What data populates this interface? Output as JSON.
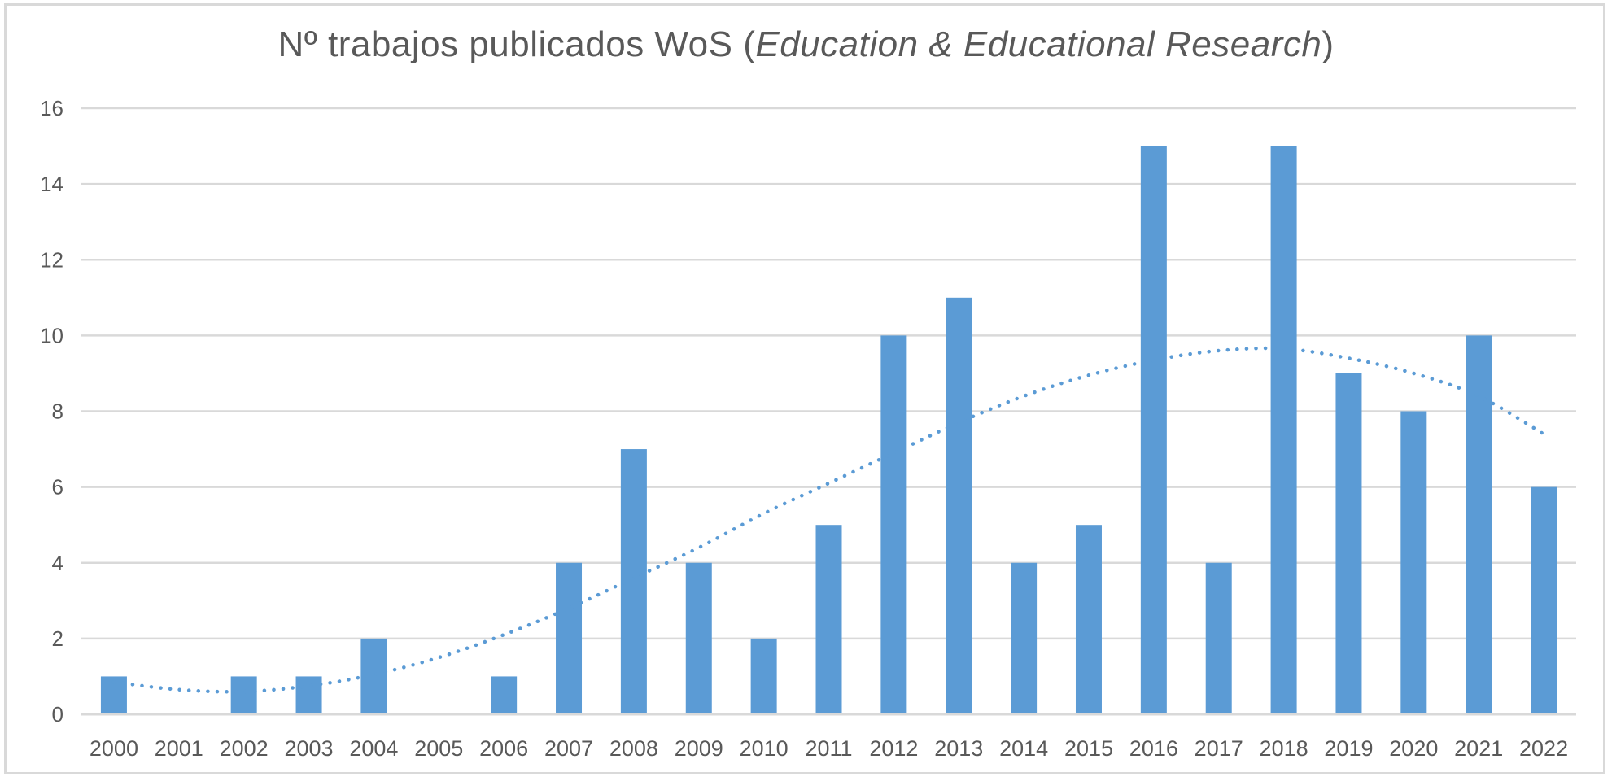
{
  "chart_data": {
    "type": "bar",
    "title": "Nº trabajos publicados WoS (Education & Educational Research)",
    "title_parts": {
      "prefix": "Nº trabajos publicados WoS (",
      "italic": "Education & Educational Research",
      "suffix": ")"
    },
    "xlabel": "",
    "ylabel": "",
    "ylim": [
      0,
      16
    ],
    "yticks": [
      0,
      2,
      4,
      6,
      8,
      10,
      12,
      14,
      16
    ],
    "grid": true,
    "legend": null,
    "categories": [
      "2000",
      "2001",
      "2002",
      "2003",
      "2004",
      "2005",
      "2006",
      "2007",
      "2008",
      "2009",
      "2010",
      "2011",
      "2012",
      "2013",
      "2014",
      "2015",
      "2016",
      "2017",
      "2018",
      "2019",
      "2020",
      "2021",
      "2022"
    ],
    "values": [
      1,
      0,
      1,
      1,
      2,
      0,
      1,
      4,
      7,
      4,
      2,
      5,
      10,
      11,
      4,
      5,
      15,
      4,
      15,
      9,
      8,
      10,
      6
    ],
    "trendline": {
      "type": "polynomial",
      "style": "dotted",
      "values": [
        0.85,
        0.65,
        0.6,
        0.75,
        1.05,
        1.5,
        2.1,
        2.8,
        3.6,
        4.4,
        5.3,
        6.1,
        6.9,
        7.7,
        8.4,
        8.95,
        9.35,
        9.6,
        9.65,
        9.4,
        9.0,
        8.4,
        7.4
      ]
    },
    "colors": {
      "bar": "#5B9BD5",
      "trendline": "#5B9BD5",
      "grid": "#D9D9D9",
      "text": "#595959",
      "border": "#D9D9D9"
    }
  }
}
